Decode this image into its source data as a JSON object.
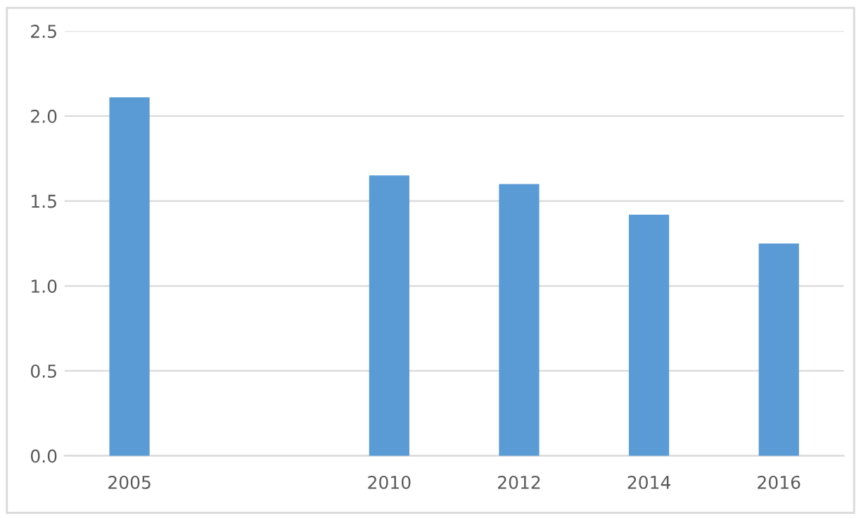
{
  "chart_data": {
    "type": "bar",
    "categories": [
      "2005",
      null,
      "2010",
      "2012",
      "2014",
      "2016"
    ],
    "values": [
      2.11,
      null,
      1.65,
      1.6,
      1.42,
      1.25
    ],
    "color": "#5b9bd5",
    "ylim": [
      0,
      2.5
    ],
    "yticks": [
      {
        "value": 0,
        "label": "0.0"
      },
      {
        "value": 0.5,
        "label": "0.5"
      },
      {
        "value": 1,
        "label": "1.0"
      },
      {
        "value": 1.5,
        "label": "1.5"
      },
      {
        "value": 2,
        "label": "2.0"
      },
      {
        "value": 2.5,
        "label": "2.5"
      }
    ],
    "grid": "y",
    "legend": false
  }
}
